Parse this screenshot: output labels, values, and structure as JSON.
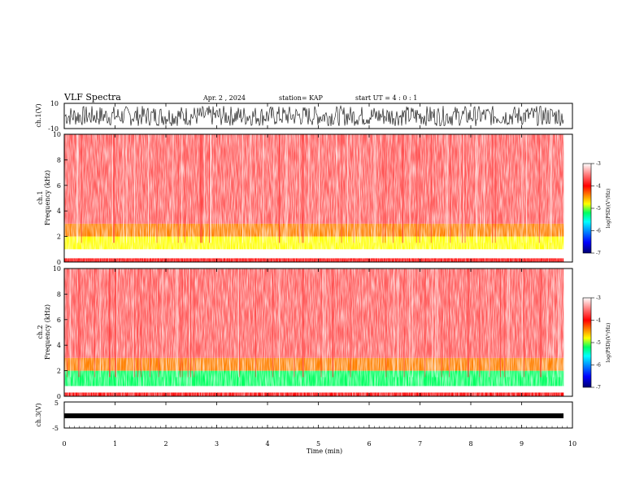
{
  "header": {
    "title": "VLF Spectra",
    "date": "Apr. 2 , 2024",
    "station": "station= KAP",
    "start": "start  UT =   4 : 0  : 1"
  },
  "chart_data": [
    {
      "type": "line",
      "panel": "waveform-ch1",
      "ylabel": "ch.1(V)",
      "ylim": [
        -10,
        10
      ],
      "yticks": [
        "10",
        "-10"
      ],
      "x_range_min": [
        0,
        9.83
      ],
      "description_level": "dense oscillation roughly between -8 and 8 V"
    },
    {
      "type": "heatmap",
      "panel": "spectrogram-ch1",
      "ylabel": "ch.1\nFrequency (kHz)",
      "ylabel_line1": "ch.1",
      "ylabel_line2": "Frequency (kHz)",
      "ylim": [
        0,
        10
      ],
      "yticks": [
        "0",
        "2",
        "4",
        "6",
        "8",
        "10"
      ],
      "x_range_min": [
        0,
        9.83
      ],
      "bands_khz": [
        {
          "from": 0.0,
          "to": 0.3,
          "level": -4.0
        },
        {
          "from": 0.3,
          "to": 1.0,
          "level": -3.2
        },
        {
          "from": 1.0,
          "to": 2.0,
          "level": -5.0
        },
        {
          "from": 2.0,
          "to": 3.0,
          "level": -4.4
        },
        {
          "from": 3.0,
          "to": 10.0,
          "level": -3.6
        }
      ],
      "colorbar": {
        "label": "log(PSD)(V²/Hz)",
        "min": -7,
        "max": -3,
        "ticks": [
          "-3",
          "-4",
          "-5",
          "-6",
          "-7"
        ]
      }
    },
    {
      "type": "heatmap",
      "panel": "spectrogram-ch2",
      "ylabel_line1": "ch.2",
      "ylabel_line2": "Frequency (kHz)",
      "ylim": [
        0,
        10
      ],
      "yticks": [
        "0",
        "2",
        "4",
        "6",
        "8",
        "10"
      ],
      "x_range_min": [
        0,
        9.83
      ],
      "bands_khz": [
        {
          "from": 0.0,
          "to": 0.3,
          "level": -4.0
        },
        {
          "from": 0.3,
          "to": 0.8,
          "level": -3.2
        },
        {
          "from": 0.8,
          "to": 2.0,
          "level": -5.2
        },
        {
          "from": 2.0,
          "to": 3.0,
          "level": -4.5
        },
        {
          "from": 3.0,
          "to": 10.0,
          "level": -3.6
        }
      ],
      "colorbar": {
        "label": "log(PSD)(V²/Hz)",
        "min": -7,
        "max": -3,
        "ticks": [
          "-3",
          "-4",
          "-5",
          "-6",
          "-7"
        ]
      }
    },
    {
      "type": "line",
      "panel": "waveform-ch3",
      "ylabel": "ch.3(V)",
      "ylim": [
        -5,
        5
      ],
      "yticks": [
        "5",
        "-5"
      ],
      "x_range_min": [
        0,
        9.83
      ],
      "description_level": "near-constant band around -1 V"
    }
  ],
  "x_axis": {
    "xlabel": "Time (min)",
    "xlim": [
      0,
      10
    ],
    "ticks": [
      "0",
      "1",
      "2",
      "3",
      "4",
      "5",
      "6",
      "7",
      "8",
      "9",
      "10"
    ]
  },
  "colors": {
    "colormap": [
      "#000070",
      "#0000ff",
      "#0090ff",
      "#00ffff",
      "#00ff60",
      "#ffff00",
      "#ff8000",
      "#ff0000",
      "#ff6060",
      "#ffffff"
    ]
  }
}
